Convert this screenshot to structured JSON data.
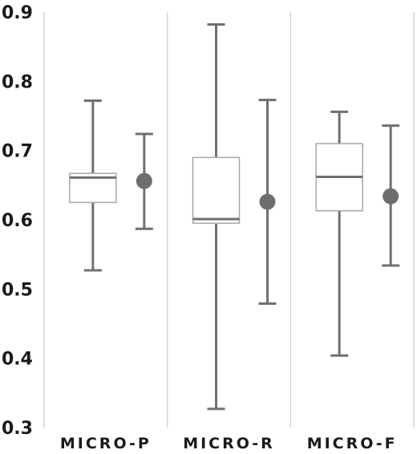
{
  "chart_data": {
    "type": "boxplot",
    "title": "",
    "xlabel": "",
    "ylabel": "",
    "ylim": [
      0.3,
      0.9
    ],
    "yticks": [
      "0.3",
      "0.4",
      "0.5",
      "0.6",
      "0.7",
      "0.8",
      "0.9"
    ],
    "grid": false,
    "categories": [
      "MICRO-P",
      "MICRO-R",
      "MICRO-F"
    ],
    "boxes": [
      {
        "min": 0.527,
        "q1": 0.625,
        "median": 0.661,
        "q3": 0.667,
        "max": 0.772
      },
      {
        "min": 0.327,
        "q1": 0.595,
        "median": 0.601,
        "q3": 0.69,
        "max": 0.882
      },
      {
        "min": 0.404,
        "q1": 0.613,
        "median": 0.662,
        "q3": 0.71,
        "max": 0.756
      }
    ],
    "mean_points": [
      {
        "mean": 0.656,
        "lower": 0.587,
        "upper": 0.724
      },
      {
        "mean": 0.626,
        "lower": 0.479,
        "upper": 0.773
      },
      {
        "mean": 0.634,
        "lower": 0.534,
        "upper": 0.736
      }
    ],
    "colors": {
      "whisker": "#707070",
      "box_border": "#a6a6a6",
      "box_fill": "#ffffff",
      "median": "#707070",
      "mean_point": "#6e6e6e",
      "separator": "#d4d4d4",
      "text": "#1a1a1a"
    }
  }
}
